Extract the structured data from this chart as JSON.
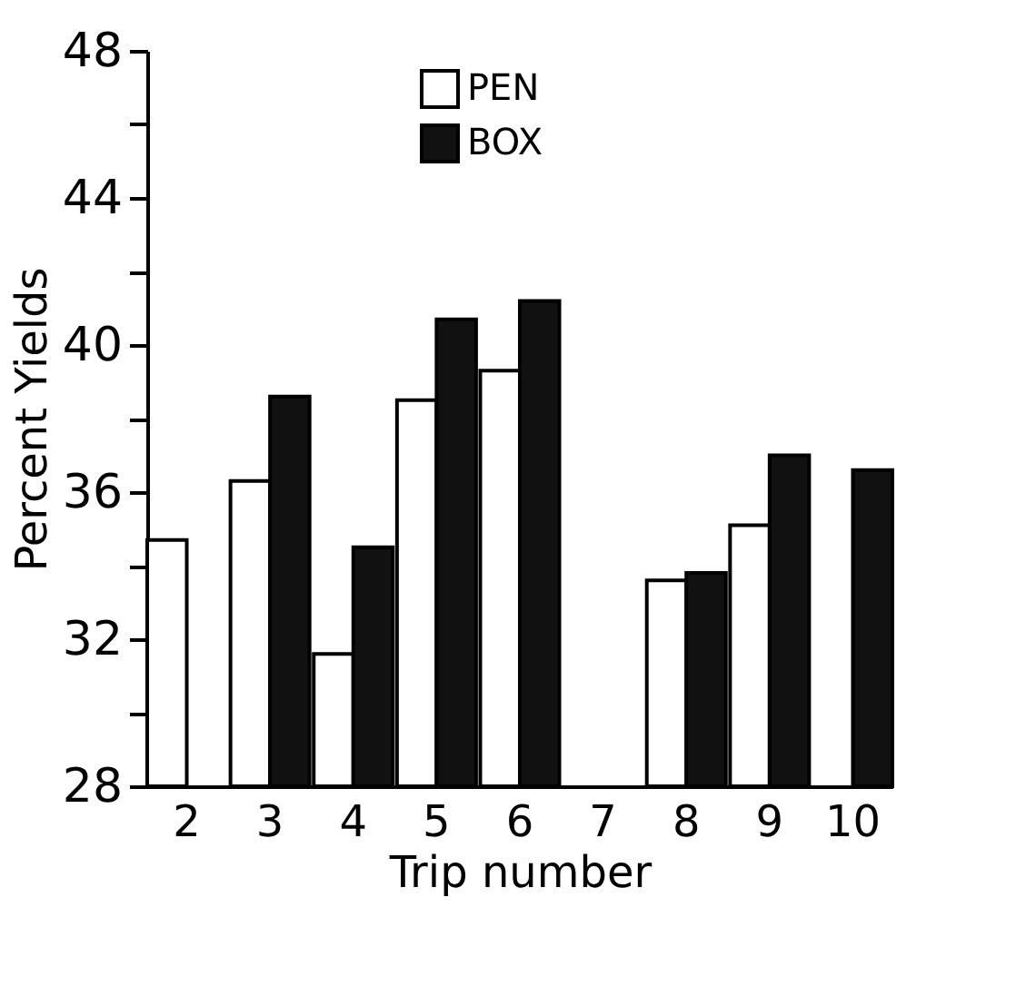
{
  "chart_data": {
    "type": "bar",
    "xlabel": "Trip number",
    "ylabel": "Percent Yields",
    "categories": [
      "2",
      "3",
      "4",
      "5",
      "6",
      "7",
      "8",
      "9",
      "10"
    ],
    "series": [
      {
        "name": "PEN",
        "color": "#ffffff",
        "values": [
          34.7,
          36.3,
          31.6,
          38.5,
          39.3,
          null,
          33.6,
          35.1,
          null
        ]
      },
      {
        "name": "BOX",
        "color": "#111111",
        "values": [
          null,
          38.6,
          34.5,
          40.7,
          41.2,
          null,
          33.8,
          37.0,
          36.6
        ]
      }
    ],
    "ylim": [
      28,
      48
    ],
    "yticks": [
      28,
      {
        "value": 30,
        "label": null
      },
      32,
      {
        "value": 34,
        "label": null
      },
      36,
      {
        "value": 38,
        "label": null
      },
      40,
      {
        "value": 42,
        "label": null
      },
      44,
      {
        "value": 46,
        "label": null
      },
      48
    ],
    "grid": false,
    "legend": "top"
  }
}
